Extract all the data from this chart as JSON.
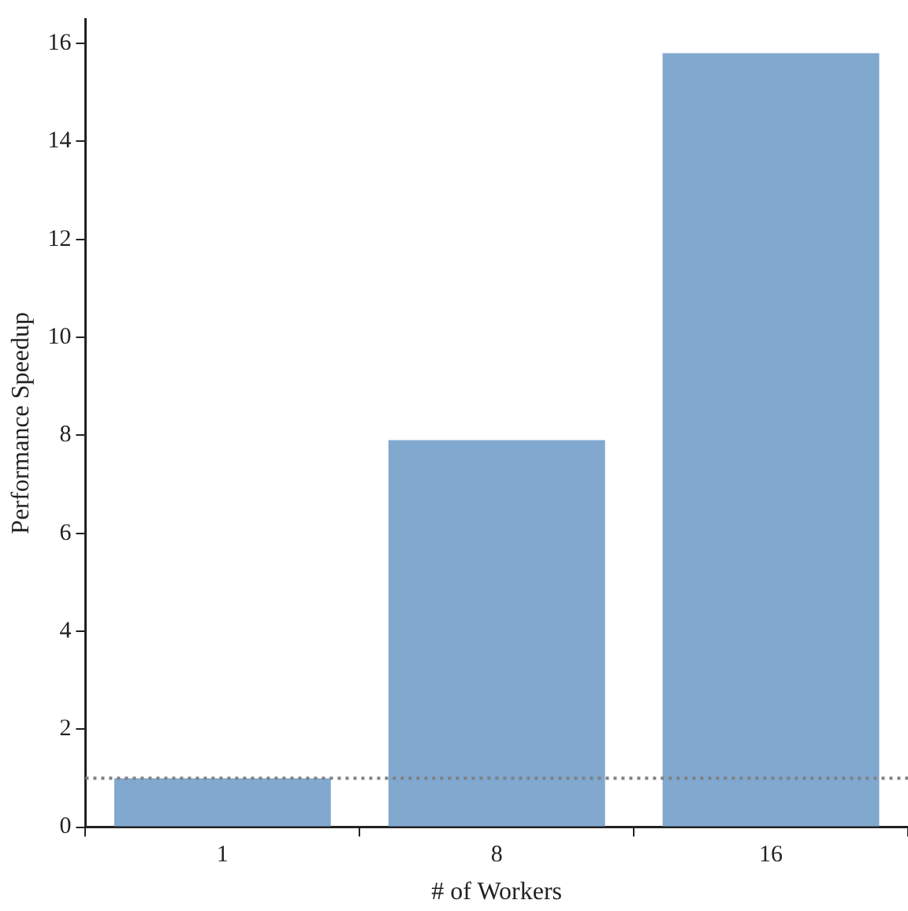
{
  "chart_data": {
    "type": "bar",
    "xlabel": "# of Workers",
    "ylabel": "Performance Speedup",
    "categories": [
      "1",
      "8",
      "16"
    ],
    "values": [
      1.0,
      7.9,
      15.8
    ],
    "color": "#81a8cf",
    "ylim": [
      0,
      16.5
    ],
    "yticks": [
      0,
      2,
      4,
      6,
      8,
      10,
      12,
      14,
      16
    ],
    "grid": false,
    "legend": false,
    "ref_lines": [
      {
        "axis": "y",
        "value": 1,
        "color": "#808080",
        "line_style": "dotted"
      }
    ]
  }
}
